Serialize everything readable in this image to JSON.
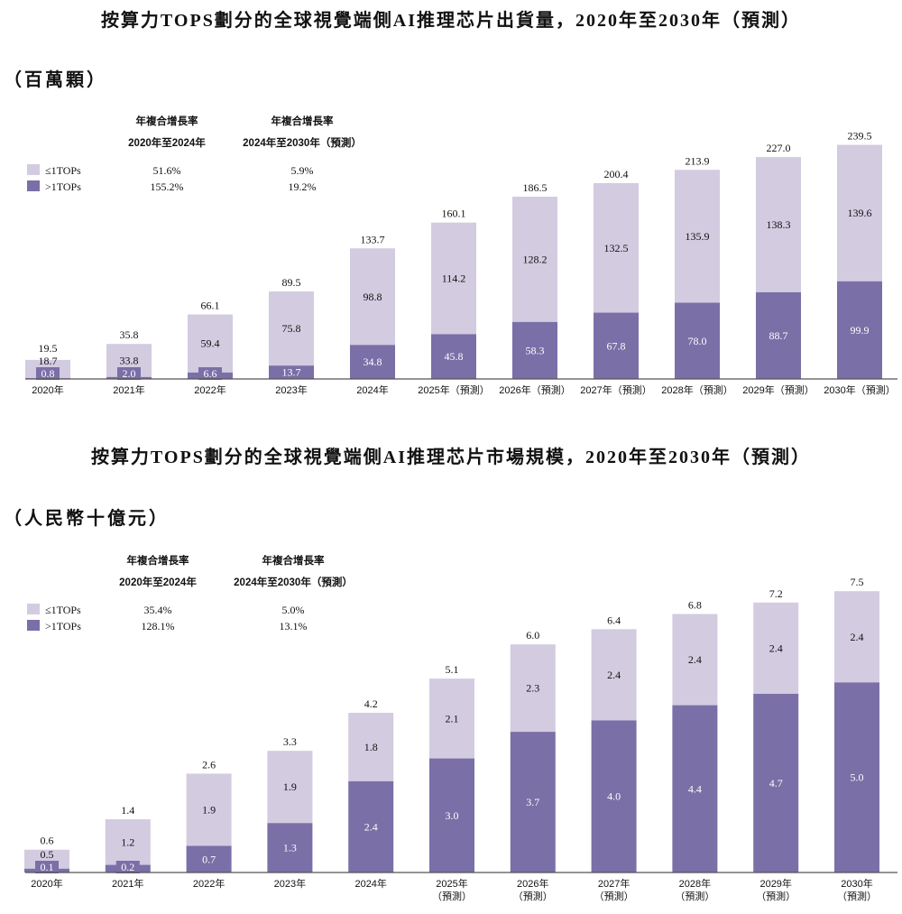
{
  "colors": {
    "le1": "#d3cbe0",
    "gt1": "#7b6fa7",
    "axis": "#555555"
  },
  "chart_data": [
    {
      "type": "bar",
      "stacked": true,
      "title": "按算力TOPS劃分的全球視覺端側AI推理芯片出貨量，2020年至2030年（預測）",
      "unit": "（百萬顆）",
      "categories": [
        "2020年",
        "2021年",
        "2022年",
        "2023年",
        "2024年",
        "2025年（預測）",
        "2026年（預測）",
        "2027年（預測）",
        "2028年（預測）",
        "2029年（預測）",
        "2030年（預測）"
      ],
      "series": [
        {
          "name": ">1TOPs",
          "values": [
            0.8,
            2.0,
            6.6,
            13.7,
            34.8,
            45.8,
            58.3,
            67.8,
            78.0,
            88.7,
            99.9
          ]
        },
        {
          "name": "≤1TOPs",
          "values": [
            18.7,
            33.8,
            59.4,
            75.8,
            98.8,
            114.2,
            128.2,
            132.5,
            135.9,
            138.3,
            139.6
          ]
        }
      ],
      "totals": [
        19.5,
        35.8,
        66.1,
        89.5,
        133.7,
        160.1,
        186.5,
        200.4,
        213.9,
        227.0,
        239.5
      ],
      "ylim": [
        0,
        240
      ],
      "cagr": {
        "header": "年複合增長率",
        "periods": [
          "2020年至2024年",
          "2024年至2030年（預測）"
        ],
        "rows": [
          {
            "name": "≤1TOPs",
            "values": [
              "51.6%",
              "5.9%"
            ]
          },
          {
            "name": ">1TOPs",
            "values": [
              "155.2%",
              "19.2%"
            ]
          }
        ]
      }
    },
    {
      "type": "bar",
      "stacked": true,
      "title": "按算力TOPS劃分的全球視覺端側AI推理芯片市場規模，2020年至2030年（預測）",
      "unit": "（人民幣十億元）",
      "categories": [
        [
          "2020年"
        ],
        [
          "2021年"
        ],
        [
          "2022年"
        ],
        [
          "2023年"
        ],
        [
          "2024年"
        ],
        [
          "2025年",
          "（預測）"
        ],
        [
          "2026年",
          "（預測）"
        ],
        [
          "2027年",
          "（預測）"
        ],
        [
          "2028年",
          "（預測）"
        ],
        [
          "2029年",
          "（預測）"
        ],
        [
          "2030年",
          "（預測）"
        ]
      ],
      "series": [
        {
          "name": ">1TOPs",
          "values": [
            0.1,
            0.2,
            0.7,
            1.3,
            2.4,
            3.0,
            3.7,
            4.0,
            4.4,
            4.7,
            5.0
          ]
        },
        {
          "name": "≤1TOPs",
          "values": [
            0.5,
            1.2,
            1.9,
            1.9,
            1.8,
            2.1,
            2.3,
            2.4,
            2.4,
            2.4,
            2.4
          ]
        }
      ],
      "totals": [
        0.6,
        1.4,
        2.6,
        3.3,
        4.2,
        5.1,
        6.0,
        6.4,
        6.8,
        7.2,
        7.5
      ],
      "ylim": [
        0,
        7.5
      ],
      "cagr": {
        "header": "年複合增長率",
        "periods": [
          "2020年至2024年",
          "2024年至2030年（預測）"
        ],
        "rows": [
          {
            "name": "≤1TOPs",
            "values": [
              "35.4%",
              "5.0%"
            ]
          },
          {
            "name": ">1TOPs",
            "values": [
              "128.1%",
              "13.1%"
            ]
          }
        ]
      }
    }
  ]
}
